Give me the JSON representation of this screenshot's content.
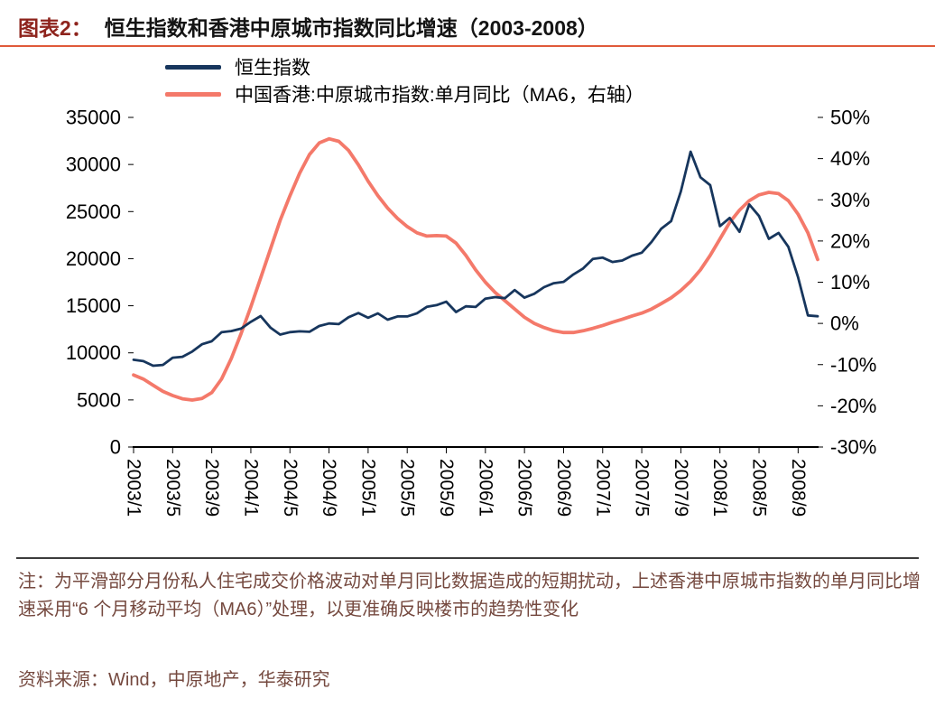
{
  "title": {
    "prefix": "图表2：",
    "text": "恒生指数和香港中原城市指数同比增速（2003-2008）"
  },
  "legend": [
    {
      "label": "恒生指数",
      "color": "#17365d"
    },
    {
      "label": "中国香港:中原城市指数:单月同比（MA6，右轴）",
      "color": "#f4796a"
    }
  ],
  "chart_data": {
    "type": "line",
    "title": "恒生指数和香港中原城市指数同比增速（2003-2008）",
    "grid": false,
    "legend_position": "top-left",
    "months": [
      "2003/1",
      "2003/2",
      "2003/3",
      "2003/4",
      "2003/5",
      "2003/6",
      "2003/7",
      "2003/8",
      "2003/9",
      "2003/10",
      "2003/11",
      "2003/12",
      "2004/1",
      "2004/2",
      "2004/3",
      "2004/4",
      "2004/5",
      "2004/6",
      "2004/7",
      "2004/8",
      "2004/9",
      "2004/10",
      "2004/11",
      "2004/12",
      "2005/1",
      "2005/2",
      "2005/3",
      "2005/4",
      "2005/5",
      "2005/6",
      "2005/7",
      "2005/8",
      "2005/9",
      "2005/10",
      "2005/11",
      "2005/12",
      "2006/1",
      "2006/2",
      "2006/3",
      "2006/4",
      "2006/5",
      "2006/6",
      "2006/7",
      "2006/8",
      "2006/9",
      "2006/10",
      "2006/11",
      "2006/12",
      "2007/1",
      "2007/2",
      "2007/3",
      "2007/4",
      "2007/5",
      "2007/6",
      "2007/7",
      "2007/8",
      "2007/9",
      "2007/10",
      "2007/11",
      "2007/12",
      "2008/1",
      "2008/2",
      "2008/3",
      "2008/4",
      "2008/5",
      "2008/6",
      "2008/7",
      "2008/8",
      "2008/9",
      "2008/10",
      "2008/11"
    ],
    "x_tick_labels": [
      "2003/1",
      "2003/5",
      "2003/9",
      "2004/1",
      "2004/5",
      "2004/9",
      "2005/1",
      "2005/5",
      "2005/9",
      "2006/1",
      "2006/5",
      "2006/9",
      "2007/1",
      "2007/5",
      "2007/9",
      "2008/1",
      "2008/5",
      "2008/9"
    ],
    "left_axis": {
      "min": 0,
      "max": 35000,
      "step": 5000,
      "ticks": [
        "35000",
        "30000",
        "25000",
        "20000",
        "15000",
        "10000",
        "5000",
        "0"
      ]
    },
    "right_axis": {
      "min": -30,
      "max": 50,
      "step": 10,
      "ticks": [
        "50%",
        "40%",
        "30%",
        "20%",
        "10%",
        "0%",
        "-10%",
        "-20%",
        "-30%"
      ]
    },
    "series": [
      {
        "name": "恒生指数",
        "axis": "left",
        "color": "#17365d",
        "width": 2.8,
        "values": [
          9259,
          9122,
          8634,
          8717,
          9487,
          9577,
          10135,
          10908,
          11229,
          12190,
          12317,
          12576,
          13289,
          13907,
          12682,
          11943,
          12198,
          12286,
          12238,
          12850,
          13120,
          13055,
          13783,
          14230,
          13722,
          14195,
          13517,
          13867,
          13867,
          14201,
          14881,
          15067,
          15429,
          14340,
          14937,
          14876,
          15753,
          15918,
          15805,
          16661,
          15857,
          16268,
          16971,
          17392,
          17543,
          18324,
          18960,
          19965,
          20106,
          19651,
          19801,
          20319,
          20634,
          21773,
          23184,
          23984,
          27142,
          31353,
          28643,
          27813,
          23456,
          24332,
          22849,
          25755,
          24533,
          22102,
          22731,
          21262,
          18016,
          13968,
          13888
        ]
      },
      {
        "name": "中国香港:中原城市指数:单月同比（MA6，右轴）",
        "axis": "right",
        "color": "#f4796a",
        "width": 3.8,
        "values": [
          -12.5,
          -13.5,
          -15,
          -16.5,
          -17.5,
          -18.3,
          -18.6,
          -18.2,
          -16.8,
          -13.5,
          -8.5,
          -2.5,
          4,
          11,
          18,
          25,
          31,
          36.5,
          41,
          43.8,
          44.8,
          44.2,
          42,
          38.5,
          34.5,
          31,
          28,
          25.5,
          23.5,
          22,
          21.2,
          21.3,
          21.2,
          19.5,
          16.5,
          13,
          10,
          7.5,
          5.5,
          3.5,
          1.5,
          0,
          -1,
          -1.8,
          -2.2,
          -2.2,
          -1.8,
          -1.2,
          -0.5,
          0.3,
          1,
          1.8,
          2.5,
          3.5,
          4.8,
          6.2,
          8,
          10.2,
          13,
          16.5,
          20.5,
          24.5,
          27.5,
          29.8,
          31.2,
          31.8,
          31.5,
          29.8,
          26.5,
          22,
          15.5
        ]
      }
    ]
  },
  "notes": {
    "note": "注：为平滑部分月份私人住宅成交价格波动对单月同比数据造成的短期扰动，上述香港中原城市指数的单月同比增速采用“6 个月移动平均（MA6）”处理，以更准确反映楼市的趋势性变化",
    "source": "资料来源：Wind，中原地产，华泰研究"
  }
}
